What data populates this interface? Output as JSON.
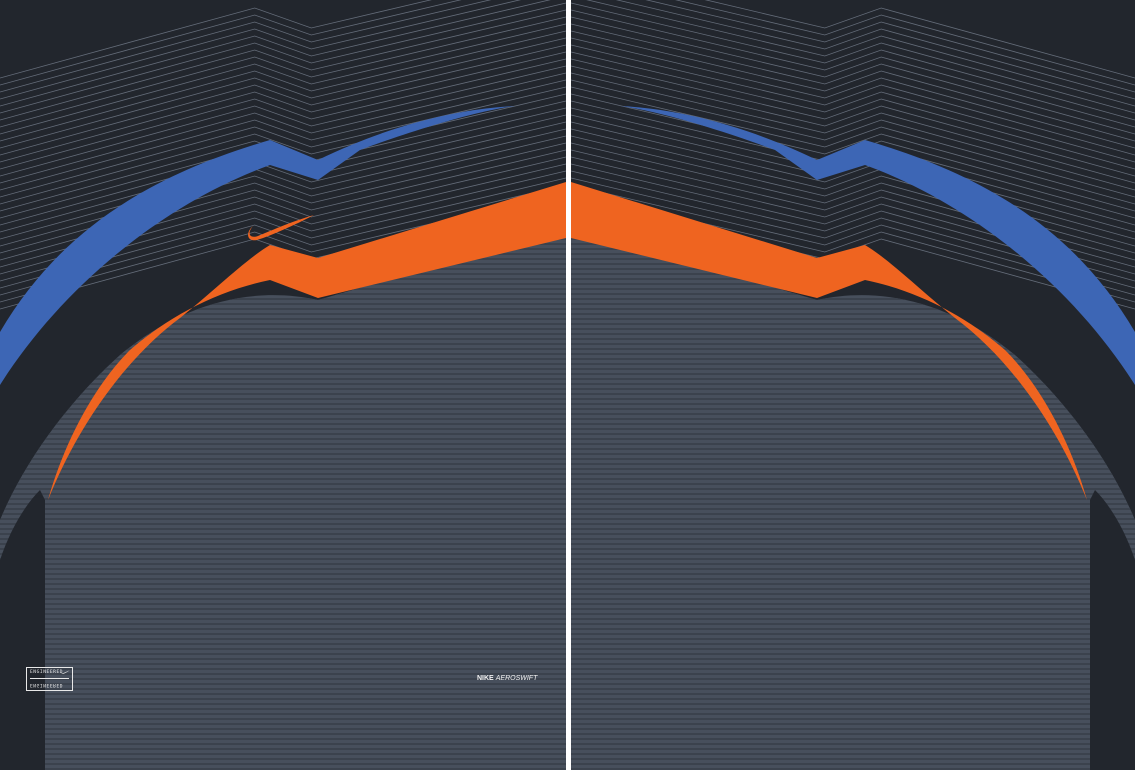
{
  "colors": {
    "dark": "#22262d",
    "blue": "#3d66b5",
    "orange": "#ef6420",
    "slate": "#474f5c",
    "line": "#646c79",
    "stripe": "#3b424d"
  },
  "icons": [
    "nike-swoosh-icon"
  ],
  "badge": {
    "top_text": "ENGINEERED",
    "bottom_text": "ENGINEERED"
  },
  "brand": {
    "name": "NIKE",
    "product": "AEROSWIFT"
  }
}
